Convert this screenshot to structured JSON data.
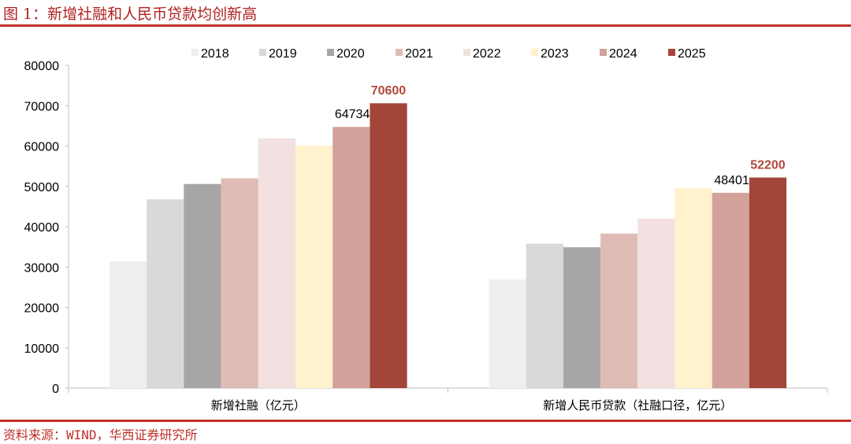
{
  "figure": {
    "title": "图 1：新增社融和人民币贷款均创新高",
    "source": "资料来源：WIND，华西证券研究所"
  },
  "chart_data": {
    "type": "bar",
    "title": "",
    "xlabel": "",
    "ylabel": "",
    "ylim": [
      0,
      80000
    ],
    "yticks": [
      0,
      10000,
      20000,
      30000,
      40000,
      50000,
      60000,
      70000,
      80000
    ],
    "grid": false,
    "legend_position": "top",
    "categories": [
      "新增社融（亿元）",
      "新增人民币贷款（社融口径，亿元）"
    ],
    "series": [
      {
        "name": "2018",
        "color": "#efefef",
        "values": [
          31400,
          26900
        ]
      },
      {
        "name": "2019",
        "color": "#d9d9d9",
        "values": [
          46800,
          35800
        ]
      },
      {
        "name": "2020",
        "color": "#a6a6a6",
        "values": [
          50600,
          34900
        ]
      },
      {
        "name": "2021",
        "color": "#e0bcb6",
        "values": [
          52000,
          38300
        ]
      },
      {
        "name": "2022",
        "color": "#f2e1e0",
        "values": [
          61900,
          42000
        ]
      },
      {
        "name": "2023",
        "color": "#fff2cc",
        "values": [
          60100,
          49500
        ]
      },
      {
        "name": "2024",
        "color": "#d2a29a",
        "values": [
          64734,
          48401
        ]
      },
      {
        "name": "2025",
        "color": "#a34538",
        "values": [
          70600,
          52200
        ]
      }
    ],
    "data_labels": [
      {
        "series": "2024",
        "category_index": 0,
        "text": "64734",
        "emphasis": false
      },
      {
        "series": "2025",
        "category_index": 0,
        "text": "70600",
        "emphasis": true
      },
      {
        "series": "2024",
        "category_index": 1,
        "text": "48401",
        "emphasis": false
      },
      {
        "series": "2025",
        "category_index": 1,
        "text": "52200",
        "emphasis": true
      }
    ]
  }
}
